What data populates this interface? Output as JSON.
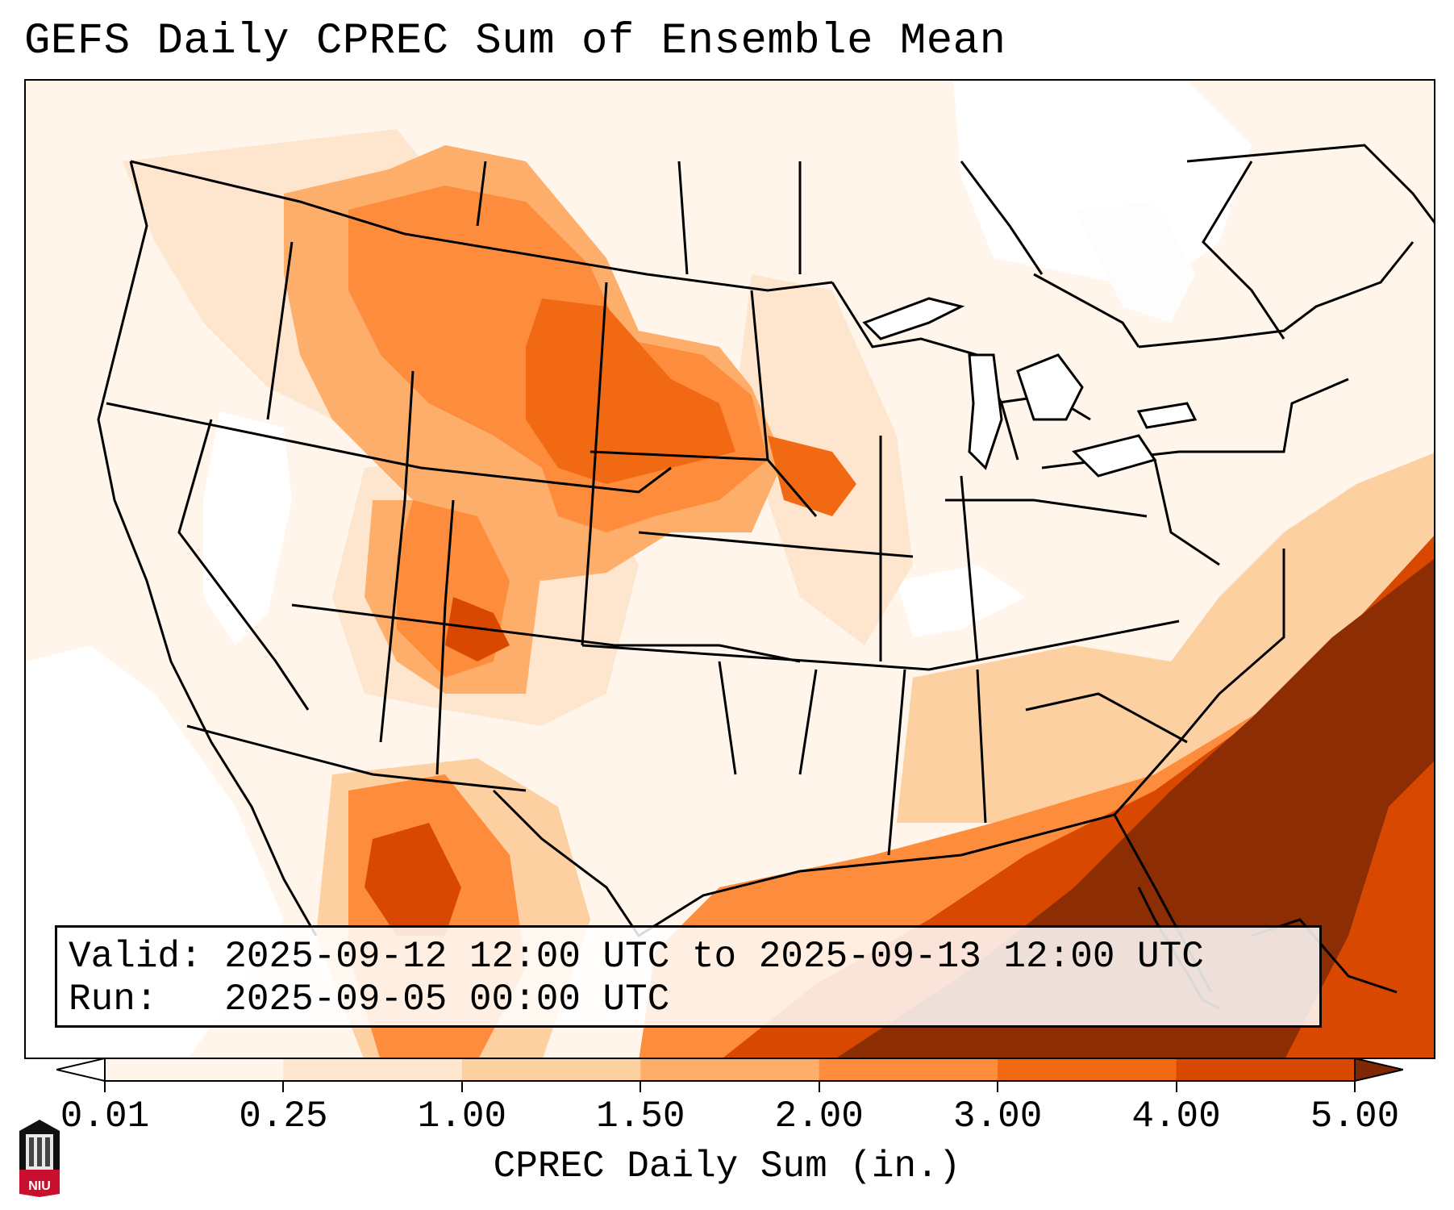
{
  "title": "GEFS Daily CPREC Sum of Ensemble Mean",
  "info": {
    "valid_label": "Valid:",
    "valid_value": "2025-09-12 12:00 UTC to 2025-09-13 12:00 UTC",
    "run_label": "Run:",
    "run_value": "2025-09-05 00:00 UTC"
  },
  "colorbar": {
    "title": "CPREC Daily Sum (in.)",
    "ticks": [
      "0.01",
      "0.25",
      "1.00",
      "1.50",
      "2.00",
      "3.00",
      "4.00",
      "5.00"
    ],
    "colors": [
      "#fff5eb",
      "#fee6ce",
      "#fdd0a2",
      "#fdae6b",
      "#fd8d3c",
      "#f16913",
      "#d94801",
      "#8c2d04"
    ],
    "under_color": "#ffffff",
    "over_color": "#7f2704"
  },
  "logo": {
    "text": "NIU"
  }
}
